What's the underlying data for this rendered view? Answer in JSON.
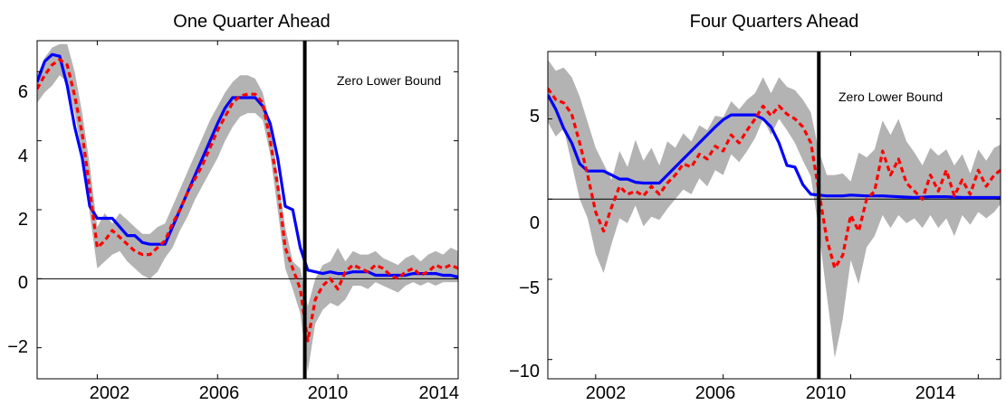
{
  "chart_data": [
    {
      "type": "line",
      "title": "One Quarter Ahead",
      "xlabel": "",
      "ylabel": "",
      "xlim": [
        2000.0,
        2014.0
      ],
      "ylim": [
        -2.9,
        6.9
      ],
      "xticks": [
        2002,
        2006,
        2010,
        2014
      ],
      "yticks": [
        -2,
        0,
        2,
        4,
        6
      ],
      "x_tick_labels": [
        "2002",
        "2006",
        "2010",
        "2014"
      ],
      "y_tick_labels": [
        "−2",
        "0",
        "2",
        "4",
        "6"
      ],
      "zero_line": 0,
      "vertical_marker": {
        "x": 2008.9,
        "label": "Zero Lower Bound"
      },
      "band": {
        "x": [
          2000.0,
          2000.25,
          2000.5,
          2000.75,
          2001.0,
          2001.25,
          2001.5,
          2001.75,
          2002.0,
          2002.25,
          2002.5,
          2002.75,
          2003.0,
          2003.25,
          2003.5,
          2003.75,
          2004.0,
          2004.25,
          2004.5,
          2004.75,
          2005.0,
          2005.25,
          2005.5,
          2005.75,
          2006.0,
          2006.25,
          2006.5,
          2006.75,
          2007.0,
          2007.25,
          2007.5,
          2007.75,
          2008.0,
          2008.25,
          2008.5,
          2008.75,
          2009.0,
          2009.25,
          2009.5,
          2009.75,
          2010.0,
          2010.25,
          2010.5,
          2010.75,
          2011.0,
          2011.25,
          2011.5,
          2011.75,
          2012.0,
          2012.25,
          2012.5,
          2012.75,
          2013.0,
          2013.25,
          2013.5,
          2013.75,
          2014.0
        ],
        "upper": [
          5.9,
          6.4,
          6.7,
          6.8,
          6.8,
          6.0,
          4.8,
          3.3,
          1.5,
          1.9,
          1.6,
          1.9,
          1.7,
          1.5,
          1.3,
          1.3,
          1.5,
          1.6,
          2.1,
          2.6,
          3.1,
          3.6,
          4.1,
          4.6,
          5.0,
          5.4,
          5.7,
          5.9,
          5.9,
          5.8,
          5.4,
          4.5,
          3.0,
          1.5,
          0.5,
          0.3,
          -0.8,
          0.0,
          0.4,
          0.5,
          0.9,
          0.5,
          0.8,
          0.7,
          0.7,
          0.8,
          0.6,
          0.5,
          0.4,
          0.6,
          0.7,
          0.5,
          0.7,
          0.8,
          0.7,
          0.9,
          0.8
        ],
        "lower": [
          5.1,
          5.4,
          5.6,
          5.9,
          5.7,
          4.8,
          3.6,
          1.9,
          0.3,
          0.5,
          0.7,
          0.8,
          0.5,
          0.3,
          0.1,
          0.0,
          0.2,
          0.6,
          0.9,
          1.4,
          1.8,
          2.3,
          2.7,
          3.1,
          3.5,
          4.0,
          4.4,
          4.7,
          4.8,
          4.8,
          4.6,
          3.6,
          2.0,
          0.3,
          -0.3,
          -1.0,
          -2.7,
          -1.3,
          -0.9,
          -0.7,
          -0.8,
          -0.6,
          -0.2,
          -0.2,
          -0.3,
          -0.1,
          -0.2,
          -0.3,
          -0.4,
          -0.2,
          -0.1,
          -0.2,
          -0.1,
          -0.2,
          -0.1,
          -0.1,
          -0.1
        ]
      },
      "series": [
        {
          "color": "#0000ff",
          "style": "solid",
          "x": [
            2000.0,
            2000.25,
            2000.5,
            2000.75,
            2001.0,
            2001.25,
            2001.5,
            2001.75,
            2002.0,
            2002.25,
            2002.5,
            2002.75,
            2003.0,
            2003.25,
            2003.5,
            2003.75,
            2004.0,
            2004.25,
            2004.5,
            2004.75,
            2005.0,
            2005.25,
            2005.5,
            2005.75,
            2006.0,
            2006.25,
            2006.5,
            2006.75,
            2007.0,
            2007.25,
            2007.5,
            2007.75,
            2008.0,
            2008.25,
            2008.5,
            2008.75,
            2009.0,
            2009.25,
            2009.5,
            2009.75,
            2010.0,
            2010.25,
            2010.5,
            2010.75,
            2011.0,
            2011.25,
            2011.5,
            2011.75,
            2012.0,
            2012.25,
            2012.5,
            2012.75,
            2013.0,
            2013.25,
            2013.5,
            2013.75,
            2014.0
          ],
          "y": [
            5.7,
            6.3,
            6.5,
            6.45,
            5.6,
            4.4,
            3.5,
            2.1,
            1.75,
            1.75,
            1.75,
            1.5,
            1.25,
            1.25,
            1.05,
            1.0,
            1.0,
            1.0,
            1.5,
            2.0,
            2.5,
            3.0,
            3.5,
            4.0,
            4.5,
            4.95,
            5.25,
            5.25,
            5.25,
            5.25,
            5.0,
            4.5,
            3.5,
            2.1,
            2.0,
            0.9,
            0.25,
            0.2,
            0.15,
            0.2,
            0.15,
            0.15,
            0.2,
            0.2,
            0.2,
            0.1,
            0.1,
            0.1,
            0.1,
            0.1,
            0.15,
            0.15,
            0.15,
            0.15,
            0.1,
            0.1,
            0.05
          ]
        },
        {
          "color": "#ff0000",
          "style": "dashed",
          "x": [
            2000.0,
            2000.25,
            2000.5,
            2000.75,
            2001.0,
            2001.25,
            2001.5,
            2001.75,
            2002.0,
            2002.25,
            2002.5,
            2002.75,
            2003.0,
            2003.25,
            2003.5,
            2003.75,
            2004.0,
            2004.25,
            2004.5,
            2004.75,
            2005.0,
            2005.25,
            2005.5,
            2005.75,
            2006.0,
            2006.25,
            2006.5,
            2006.75,
            2007.0,
            2007.25,
            2007.5,
            2007.75,
            2008.0,
            2008.25,
            2008.5,
            2008.75,
            2009.0,
            2009.25,
            2009.5,
            2009.75,
            2010.0,
            2010.25,
            2010.5,
            2010.75,
            2011.0,
            2011.25,
            2011.5,
            2011.75,
            2012.0,
            2012.25,
            2012.5,
            2012.75,
            2013.0,
            2013.25,
            2013.5,
            2013.75,
            2014.0
          ],
          "y": [
            5.5,
            5.9,
            6.2,
            6.35,
            6.2,
            5.3,
            4.2,
            2.6,
            0.9,
            1.1,
            1.4,
            1.2,
            1.0,
            0.8,
            0.7,
            0.7,
            0.9,
            1.1,
            1.6,
            2.0,
            2.5,
            2.9,
            3.3,
            3.8,
            4.3,
            4.7,
            5.1,
            5.3,
            5.35,
            5.35,
            5.1,
            4.0,
            2.7,
            0.9,
            0.3,
            -0.3,
            -1.8,
            -0.6,
            -0.2,
            0.0,
            -0.3,
            0.2,
            0.4,
            0.3,
            0.2,
            0.4,
            0.3,
            0.1,
            0.0,
            0.2,
            0.3,
            0.1,
            0.2,
            0.4,
            0.3,
            0.4,
            0.3
          ]
        }
      ]
    },
    {
      "type": "line",
      "title": "Four Quarters Ahead",
      "xlabel": "",
      "ylabel": "",
      "xlim": [
        2000.5,
        2014.7
      ],
      "ylim": [
        -11.2,
        9.2
      ],
      "xticks": [
        2002,
        2006,
        2010,
        2014
      ],
      "yticks": [
        -10,
        -5,
        0,
        5
      ],
      "x_tick_labels": [
        "2002",
        "2006",
        "2010",
        "2014"
      ],
      "y_tick_labels": [
        "−10",
        "−5",
        "0",
        "5"
      ],
      "zero_line": 0,
      "vertical_marker": {
        "x": 2009.0,
        "label": "Zero Lower Bound"
      },
      "band": {
        "x": [
          2000.5,
          2000.75,
          2001.0,
          2001.25,
          2001.5,
          2001.75,
          2002.0,
          2002.25,
          2002.5,
          2002.75,
          2003.0,
          2003.25,
          2003.5,
          2003.75,
          2004.0,
          2004.25,
          2004.5,
          2004.75,
          2005.0,
          2005.25,
          2005.5,
          2005.75,
          2006.0,
          2006.25,
          2006.5,
          2006.75,
          2007.0,
          2007.25,
          2007.5,
          2007.75,
          2008.0,
          2008.25,
          2008.5,
          2008.75,
          2009.0,
          2009.25,
          2009.5,
          2009.75,
          2010.0,
          2010.25,
          2010.5,
          2010.75,
          2011.0,
          2011.25,
          2011.5,
          2011.75,
          2012.0,
          2012.25,
          2012.5,
          2012.75,
          2013.0,
          2013.25,
          2013.5,
          2013.75,
          2014.0,
          2014.25,
          2014.5,
          2014.7
        ],
        "upper": [
          8.7,
          8.0,
          8.2,
          7.6,
          6.4,
          4.8,
          3.2,
          2.2,
          1.2,
          3.0,
          2.0,
          3.7,
          2.4,
          3.2,
          2.1,
          3.6,
          3.2,
          4.1,
          3.6,
          4.6,
          4.3,
          5.2,
          5.1,
          6.1,
          5.6,
          6.2,
          6.6,
          7.6,
          6.6,
          7.6,
          7.0,
          6.8,
          6.2,
          5.4,
          3.0,
          1.5,
          1.5,
          1.6,
          1.1,
          2.9,
          2.6,
          3.1,
          4.9,
          4.0,
          5.0,
          3.6,
          2.9,
          2.1,
          3.2,
          2.7,
          3.1,
          2.1,
          2.8,
          1.6,
          3.1,
          2.4,
          3.2,
          3.4
        ],
        "lower": [
          4.8,
          3.9,
          4.4,
          2.2,
          0.0,
          -1.2,
          -3.4,
          -4.6,
          -2.8,
          -1.2,
          -1.5,
          -0.4,
          -1.7,
          -1.1,
          -1.3,
          -0.6,
          0.0,
          0.6,
          0.3,
          1.3,
          0.8,
          1.8,
          1.5,
          2.8,
          2.3,
          3.0,
          3.8,
          5.0,
          4.0,
          5.0,
          4.3,
          3.5,
          2.4,
          1.4,
          -2.0,
          -6.0,
          -9.9,
          -7.5,
          -3.8,
          -5.3,
          -3.0,
          -2.3,
          -1.0,
          -1.8,
          -1.0,
          -1.5,
          -1.2,
          -1.8,
          -1.0,
          -1.8,
          -1.2,
          -2.3,
          -1.0,
          -1.6,
          -0.8,
          -1.2,
          -0.8,
          -0.3
        ]
      },
      "series": [
        {
          "color": "#0000ff",
          "style": "solid",
          "x": [
            2000.5,
            2000.75,
            2001.0,
            2001.25,
            2001.5,
            2001.75,
            2002.0,
            2002.25,
            2002.5,
            2002.75,
            2003.0,
            2003.25,
            2003.5,
            2003.75,
            2004.0,
            2004.25,
            2004.5,
            2004.75,
            2005.0,
            2005.25,
            2005.5,
            2005.75,
            2006.0,
            2006.25,
            2006.5,
            2006.75,
            2007.0,
            2007.25,
            2007.5,
            2007.75,
            2008.0,
            2008.25,
            2008.5,
            2008.75,
            2009.0,
            2009.25,
            2009.5,
            2009.75,
            2010.0,
            2010.5,
            2011.0,
            2011.5,
            2012.0,
            2012.5,
            2013.0,
            2013.5,
            2014.0,
            2014.7
          ],
          "y": [
            6.5,
            5.6,
            4.4,
            3.5,
            2.2,
            1.75,
            1.75,
            1.75,
            1.5,
            1.25,
            1.25,
            1.05,
            1.0,
            1.0,
            1.0,
            1.5,
            2.0,
            2.5,
            3.0,
            3.5,
            4.0,
            4.5,
            4.95,
            5.25,
            5.25,
            5.25,
            5.25,
            5.0,
            4.5,
            3.5,
            2.1,
            2.0,
            0.9,
            0.3,
            0.25,
            0.2,
            0.2,
            0.2,
            0.25,
            0.2,
            0.2,
            0.15,
            0.1,
            0.15,
            0.15,
            0.1,
            0.1,
            0.1
          ]
        },
        {
          "color": "#ff0000",
          "style": "dashed",
          "x": [
            2000.5,
            2000.75,
            2001.0,
            2001.25,
            2001.5,
            2001.75,
            2002.0,
            2002.25,
            2002.5,
            2002.75,
            2003.0,
            2003.25,
            2003.5,
            2003.75,
            2004.0,
            2004.25,
            2004.5,
            2004.75,
            2005.0,
            2005.25,
            2005.5,
            2005.75,
            2006.0,
            2006.25,
            2006.5,
            2006.75,
            2007.0,
            2007.25,
            2007.5,
            2007.75,
            2008.0,
            2008.25,
            2008.5,
            2008.75,
            2009.0,
            2009.25,
            2009.5,
            2009.75,
            2010.0,
            2010.25,
            2010.5,
            2010.75,
            2011.0,
            2011.25,
            2011.5,
            2011.75,
            2012.0,
            2012.25,
            2012.5,
            2012.75,
            2013.0,
            2013.25,
            2013.5,
            2013.75,
            2014.0,
            2014.25,
            2014.5,
            2014.7
          ],
          "y": [
            6.9,
            6.2,
            6.0,
            5.3,
            3.5,
            1.5,
            -0.8,
            -2.0,
            -0.5,
            0.8,
            0.3,
            0.5,
            0.2,
            0.8,
            0.3,
            1.0,
            1.5,
            2.2,
            2.0,
            2.8,
            2.5,
            3.3,
            3.0,
            4.0,
            3.5,
            4.3,
            5.0,
            5.8,
            5.2,
            5.8,
            5.3,
            5.0,
            4.5,
            3.5,
            0.5,
            -2.5,
            -4.3,
            -3.5,
            -1.0,
            -2.0,
            0.0,
            0.5,
            3.0,
            1.5,
            2.5,
            1.0,
            0.5,
            0.0,
            1.5,
            0.5,
            1.8,
            0.2,
            1.2,
            0.3,
            1.8,
            0.8,
            1.5,
            1.8
          ]
        }
      ]
    }
  ]
}
